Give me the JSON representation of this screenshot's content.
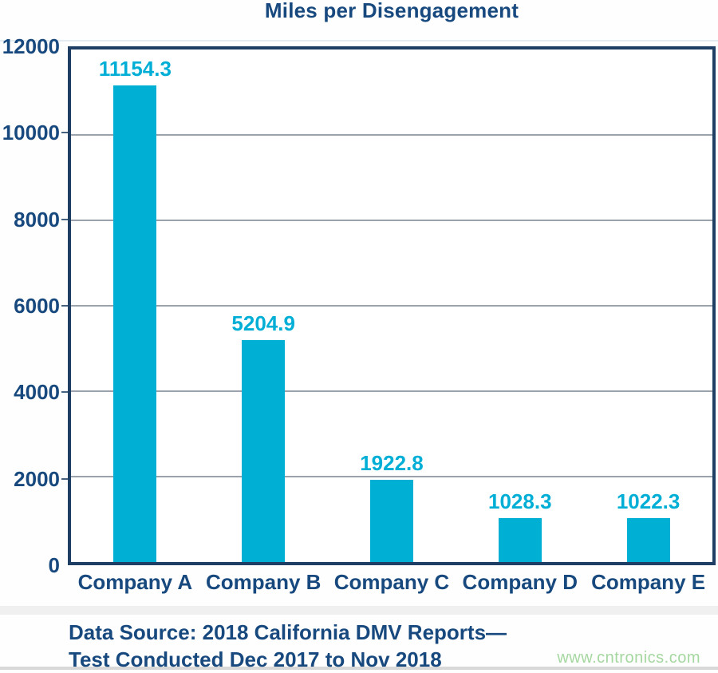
{
  "chart_data": {
    "type": "bar",
    "title": "Miles per Disengagement",
    "categories": [
      "Company A",
      "Company B",
      "Company C",
      "Company D",
      "Company E"
    ],
    "values": [
      11154.3,
      5204.9,
      1922.8,
      1028.3,
      1022.3
    ],
    "value_labels": [
      "11154.3",
      "5204.9",
      "1922.8",
      "1028.3",
      "1022.3"
    ],
    "xlabel": "",
    "ylabel": "",
    "ylim": [
      0,
      12000
    ],
    "yticks": [
      0,
      2000,
      4000,
      6000,
      8000,
      10000,
      12000
    ],
    "grid": "horizontal-only",
    "legend": "none",
    "bar_color": "#00afd4",
    "value_label_color": "#00aed6",
    "axis_text_color": "#17497e",
    "plot_border_color": "#1e3f63",
    "gridline_color": "#9aa2ab"
  },
  "footer": {
    "source_line1": "Data Source: 2018 California DMV Reports—",
    "source_line2": "Test Conducted Dec 2017 to Nov 2018",
    "watermark": "www.cntronics.com",
    "watermark_color": "#a5d7a0"
  }
}
